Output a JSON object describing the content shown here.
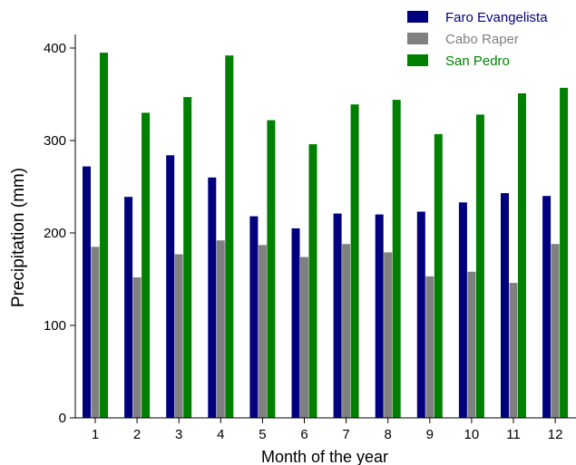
{
  "chart_data": {
    "type": "bar",
    "xlabel": "Month of the year",
    "ylabel": "Precipitation (mm)",
    "ylim": [
      0,
      400
    ],
    "yticks": [
      0,
      100,
      200,
      300,
      400
    ],
    "categories": [
      "1",
      "2",
      "3",
      "4",
      "5",
      "6",
      "7",
      "8",
      "9",
      "10",
      "11",
      "12"
    ],
    "legend_position": "top-right",
    "grid": false,
    "series": [
      {
        "name": "Faro Evangelista",
        "color": "#00007f",
        "values": [
          272,
          239,
          284,
          260,
          218,
          205,
          221,
          220,
          223,
          233,
          243,
          240
        ]
      },
      {
        "name": "Cabo Raper",
        "color": "#808080",
        "values": [
          185,
          152,
          177,
          192,
          187,
          174,
          188,
          179,
          153,
          158,
          146,
          188
        ]
      },
      {
        "name": "San Pedro",
        "color": "#008000",
        "values": [
          395,
          330,
          347,
          392,
          322,
          296,
          339,
          344,
          307,
          328,
          351,
          357
        ]
      }
    ]
  }
}
